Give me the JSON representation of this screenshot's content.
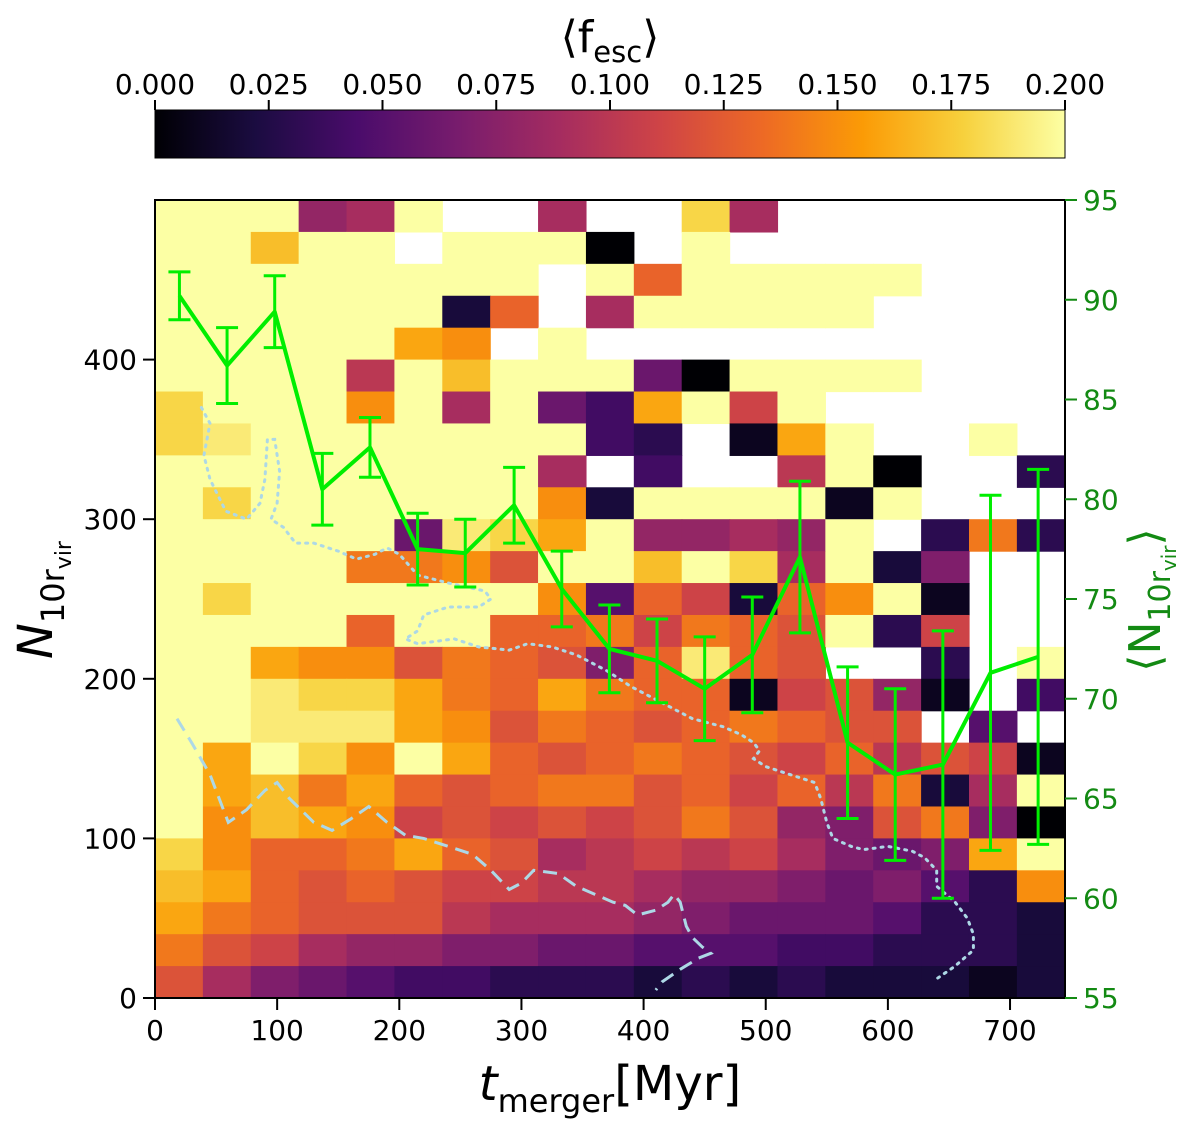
{
  "chart_data": {
    "type": "heatmap",
    "colorbar": {
      "label": "⟨f_esc⟩",
      "label_main": "⟨f",
      "label_sub": "esc",
      "label_close": "⟩",
      "range": [
        0,
        0.2
      ],
      "ticks": [
        "0.000",
        "0.025",
        "0.050",
        "0.075",
        "0.100",
        "0.125",
        "0.150",
        "0.175",
        "0.200"
      ],
      "colormap": "inferno",
      "stops": [
        "#000004",
        "#1b0c41",
        "#4a0c6b",
        "#781c6d",
        "#a52c60",
        "#cf4446",
        "#ed6925",
        "#fb9b06",
        "#f7d13d",
        "#fcffa4"
      ]
    },
    "xaxis": {
      "label_main": "t",
      "label_sub": "merger",
      "label_unit": "[Myr]",
      "range": [
        0,
        745
      ],
      "ticks": [
        "0",
        "100",
        "200",
        "300",
        "400",
        "500",
        "600",
        "700"
      ]
    },
    "yaxis_left": {
      "label_main": "N",
      "label_sub": "10r",
      "label_subsub": "vir",
      "range": [
        0,
        500
      ],
      "ticks": [
        "0",
        "100",
        "200",
        "300",
        "400"
      ]
    },
    "yaxis_right": {
      "label": "⟨N_10r_vir⟩",
      "label_main": "⟨N",
      "label_sub": "10r",
      "label_subsub": "vir",
      "label_close": "⟩",
      "range": [
        55,
        95
      ],
      "ticks": [
        "55",
        "60",
        "65",
        "70",
        "75",
        "80",
        "85",
        "90",
        "95"
      ],
      "color": "#138a13"
    },
    "grid_columns": 19,
    "grid_rows": 25,
    "cell_width_myr": 39.2,
    "cell_height_N": 20,
    "heatmap_note": "grid rows listed top (N 480-500) to bottom (N 0-20); values are mean f_esc; null = empty bin",
    "heatmap_values": [
      [
        0.2,
        0.2,
        0.2,
        0.08,
        0.09,
        0.2,
        null,
        null,
        0.09,
        null,
        null,
        0.18,
        0.09,
        null,
        null,
        null,
        null,
        null,
        null
      ],
      [
        0.2,
        0.2,
        0.17,
        0.2,
        0.2,
        null,
        0.2,
        0.2,
        0.2,
        0.0,
        null,
        0.2,
        null,
        null,
        null,
        null,
        null,
        null,
        null
      ],
      [
        0.2,
        0.2,
        0.2,
        0.2,
        0.2,
        0.2,
        0.2,
        0.2,
        null,
        0.2,
        0.13,
        0.2,
        0.2,
        0.2,
        0.2,
        0.2,
        null,
        null,
        null
      ],
      [
        0.2,
        0.2,
        0.2,
        0.2,
        0.2,
        0.2,
        0.02,
        0.13,
        null,
        0.09,
        0.2,
        0.2,
        0.2,
        0.2,
        0.2,
        null,
        null,
        null,
        null
      ],
      [
        0.2,
        0.2,
        0.2,
        0.2,
        0.2,
        0.16,
        0.15,
        null,
        0.2,
        null,
        null,
        null,
        null,
        null,
        null,
        null,
        null,
        null,
        null
      ],
      [
        0.2,
        0.2,
        0.2,
        0.2,
        0.1,
        0.2,
        0.17,
        0.2,
        0.2,
        0.2,
        0.06,
        0.0,
        0.2,
        0.2,
        0.2,
        0.2,
        null,
        null,
        null
      ],
      [
        0.18,
        0.2,
        0.2,
        0.2,
        0.15,
        0.2,
        0.09,
        0.2,
        0.06,
        0.04,
        0.16,
        0.2,
        0.11,
        0.2,
        null,
        null,
        null,
        null,
        null
      ],
      [
        0.18,
        0.19,
        0.2,
        0.2,
        0.2,
        0.2,
        0.2,
        0.2,
        0.2,
        0.04,
        0.03,
        null,
        0.01,
        0.16,
        0.2,
        null,
        null,
        0.2,
        null
      ],
      [
        0.2,
        0.2,
        0.2,
        0.2,
        0.2,
        0.2,
        0.2,
        0.2,
        0.09,
        null,
        0.04,
        null,
        null,
        0.1,
        0.2,
        0.0,
        null,
        null,
        0.03
      ],
      [
        0.2,
        0.18,
        0.2,
        0.2,
        0.2,
        0.2,
        0.2,
        0.2,
        0.15,
        0.02,
        0.2,
        0.2,
        0.2,
        0.2,
        0.01,
        0.2,
        null,
        null,
        null
      ],
      [
        0.2,
        0.2,
        0.2,
        0.2,
        0.2,
        0.06,
        0.19,
        0.18,
        0.16,
        0.2,
        0.08,
        0.08,
        0.09,
        0.08,
        0.2,
        null,
        0.03,
        0.14,
        0.03
      ],
      [
        0.2,
        0.2,
        0.2,
        0.2,
        0.14,
        0.14,
        0.15,
        0.12,
        0.2,
        0.2,
        0.17,
        0.2,
        0.18,
        0.09,
        0.2,
        0.02,
        0.07,
        null,
        null
      ],
      [
        0.2,
        0.18,
        0.2,
        0.2,
        0.2,
        0.2,
        0.2,
        0.2,
        0.15,
        0.05,
        0.13,
        0.11,
        0.02,
        0.13,
        0.15,
        0.2,
        0.01,
        null,
        null
      ],
      [
        0.2,
        0.2,
        0.2,
        0.2,
        0.13,
        0.2,
        0.2,
        0.13,
        0.13,
        0.14,
        0.11,
        0.14,
        0.13,
        0.12,
        0.2,
        0.03,
        0.11,
        null,
        null
      ],
      [
        0.2,
        0.2,
        0.16,
        0.15,
        0.15,
        0.12,
        0.14,
        0.13,
        0.12,
        0.07,
        0.13,
        0.19,
        0.13,
        0.12,
        null,
        null,
        0.03,
        null,
        0.2
      ],
      [
        0.2,
        0.2,
        0.19,
        0.18,
        0.18,
        0.16,
        0.14,
        0.13,
        0.16,
        0.14,
        0.13,
        0.13,
        0.01,
        0.11,
        0.12,
        0.08,
        0.01,
        null,
        0.04
      ],
      [
        0.2,
        0.2,
        0.19,
        0.19,
        0.19,
        0.16,
        0.15,
        0.12,
        0.14,
        0.13,
        0.12,
        0.13,
        0.14,
        0.13,
        0.12,
        0.12,
        null,
        0.05,
        null
      ],
      [
        0.2,
        0.16,
        0.2,
        0.18,
        0.15,
        0.2,
        0.16,
        0.13,
        0.12,
        0.13,
        0.14,
        0.13,
        0.12,
        0.11,
        0.13,
        0.1,
        0.12,
        0.11,
        0.01
      ],
      [
        0.2,
        0.16,
        0.17,
        0.14,
        0.16,
        0.13,
        0.12,
        0.13,
        0.14,
        0.14,
        0.12,
        0.13,
        0.11,
        0.13,
        0.1,
        0.14,
        0.02,
        0.09,
        0.2
      ],
      [
        0.2,
        0.15,
        0.17,
        0.16,
        0.15,
        0.11,
        0.12,
        0.11,
        0.12,
        0.11,
        0.12,
        0.14,
        0.12,
        0.08,
        0.07,
        0.12,
        0.14,
        0.07,
        0.0
      ],
      [
        0.18,
        0.15,
        0.13,
        0.13,
        0.14,
        0.16,
        0.13,
        0.12,
        0.09,
        0.1,
        0.11,
        0.1,
        0.11,
        0.09,
        0.07,
        0.06,
        0.07,
        0.16,
        0.2
      ],
      [
        0.17,
        0.16,
        0.13,
        0.12,
        0.13,
        0.12,
        0.11,
        0.11,
        0.1,
        0.1,
        0.09,
        0.08,
        0.08,
        0.07,
        0.06,
        0.07,
        0.05,
        0.03,
        0.15
      ],
      [
        0.16,
        0.14,
        0.13,
        0.12,
        0.12,
        0.12,
        0.1,
        0.09,
        0.09,
        0.09,
        0.08,
        0.07,
        0.06,
        0.06,
        0.06,
        0.05,
        0.03,
        0.03,
        0.02
      ],
      [
        0.14,
        0.12,
        0.11,
        0.09,
        0.08,
        0.08,
        0.07,
        0.07,
        0.06,
        0.06,
        0.05,
        0.05,
        0.05,
        0.04,
        0.04,
        0.03,
        0.03,
        0.03,
        0.02
      ],
      [
        0.12,
        0.09,
        0.07,
        0.06,
        0.05,
        0.04,
        0.04,
        0.03,
        0.03,
        0.03,
        0.02,
        0.03,
        0.02,
        0.03,
        0.02,
        0.02,
        0.02,
        0.01,
        0.02
      ]
    ],
    "mean_series": {
      "name": "mean N_10rvir",
      "color": "#00ee00",
      "axis": "right",
      "x": [
        20,
        59,
        98,
        137,
        176,
        215,
        254,
        294,
        333,
        372,
        411,
        450,
        489,
        528,
        567,
        606,
        645,
        684,
        723
      ],
      "y": [
        90.2,
        86.7,
        89.4,
        80.5,
        82.6,
        77.5,
        77.3,
        79.7,
        75.5,
        72.5,
        71.9,
        70.5,
        72.2,
        77.1,
        67.8,
        66.2,
        66.7,
        71.3,
        72.1
      ],
      "err": [
        1.2,
        1.9,
        1.8,
        1.8,
        1.5,
        1.8,
        1.7,
        1.9,
        1.9,
        2.2,
        2.1,
        2.6,
        2.9,
        3.8,
        3.8,
        4.3,
        6.7,
        8.9,
        9.4
      ]
    },
    "contour_dotted": {
      "color": "#add8e6",
      "style": "dotted",
      "points": [
        [
          38,
          370
        ],
        [
          45,
          360
        ],
        [
          40,
          340
        ],
        [
          45,
          325
        ],
        [
          58,
          305
        ],
        [
          75,
          300
        ],
        [
          86,
          310
        ],
        [
          90,
          325
        ],
        [
          92,
          350
        ],
        [
          98,
          350
        ],
        [
          102,
          330
        ],
        [
          100,
          310
        ],
        [
          95,
          300
        ],
        [
          105,
          295
        ],
        [
          115,
          285
        ],
        [
          130,
          285
        ],
        [
          150,
          280
        ],
        [
          165,
          275
        ],
        [
          180,
          278
        ],
        [
          190,
          282
        ],
        [
          200,
          278
        ],
        [
          215,
          265
        ],
        [
          240,
          260
        ],
        [
          270,
          255
        ],
        [
          275,
          250
        ],
        [
          265,
          245
        ],
        [
          240,
          245
        ],
        [
          220,
          240
        ],
        [
          215,
          230
        ],
        [
          205,
          225
        ],
        [
          215,
          222
        ],
        [
          245,
          225
        ],
        [
          265,
          220
        ],
        [
          290,
          218
        ],
        [
          305,
          222
        ],
        [
          325,
          220
        ],
        [
          345,
          215
        ],
        [
          370,
          205
        ],
        [
          390,
          195
        ],
        [
          415,
          185
        ],
        [
          440,
          175
        ],
        [
          465,
          170
        ],
        [
          480,
          165
        ],
        [
          490,
          160
        ],
        [
          495,
          155
        ],
        [
          490,
          150
        ],
        [
          500,
          145
        ],
        [
          520,
          140
        ],
        [
          540,
          135
        ],
        [
          545,
          125
        ],
        [
          550,
          110
        ],
        [
          555,
          100
        ],
        [
          570,
          95
        ],
        [
          580,
          93
        ],
        [
          600,
          95
        ],
        [
          620,
          92
        ],
        [
          630,
          88
        ],
        [
          640,
          80
        ],
        [
          640,
          70
        ],
        [
          655,
          60
        ],
        [
          665,
          50
        ],
        [
          670,
          40
        ],
        [
          670,
          30
        ],
        [
          655,
          20
        ],
        [
          640,
          12
        ]
      ]
    },
    "contour_dashed": {
      "color": "#add8e6",
      "style": "dashed",
      "points": [
        [
          18,
          175
        ],
        [
          30,
          160
        ],
        [
          45,
          140
        ],
        [
          60,
          110
        ],
        [
          75,
          118
        ],
        [
          90,
          130
        ],
        [
          100,
          135
        ],
        [
          110,
          125
        ],
        [
          130,
          110
        ],
        [
          145,
          105
        ],
        [
          160,
          112
        ],
        [
          175,
          120
        ],
        [
          190,
          110
        ],
        [
          205,
          102
        ],
        [
          220,
          100
        ],
        [
          240,
          95
        ],
        [
          260,
          90
        ],
        [
          275,
          80
        ],
        [
          290,
          68
        ],
        [
          300,
          72
        ],
        [
          310,
          80
        ],
        [
          330,
          78
        ],
        [
          345,
          70
        ],
        [
          360,
          65
        ],
        [
          375,
          60
        ],
        [
          385,
          58
        ],
        [
          390,
          55
        ],
        [
          395,
          52
        ],
        [
          410,
          55
        ],
        [
          420,
          60
        ],
        [
          425,
          65
        ],
        [
          430,
          60
        ],
        [
          435,
          45
        ],
        [
          440,
          38
        ],
        [
          448,
          32
        ],
        [
          455,
          28
        ],
        [
          445,
          25
        ],
        [
          430,
          18
        ],
        [
          415,
          10
        ],
        [
          410,
          5
        ]
      ]
    }
  }
}
